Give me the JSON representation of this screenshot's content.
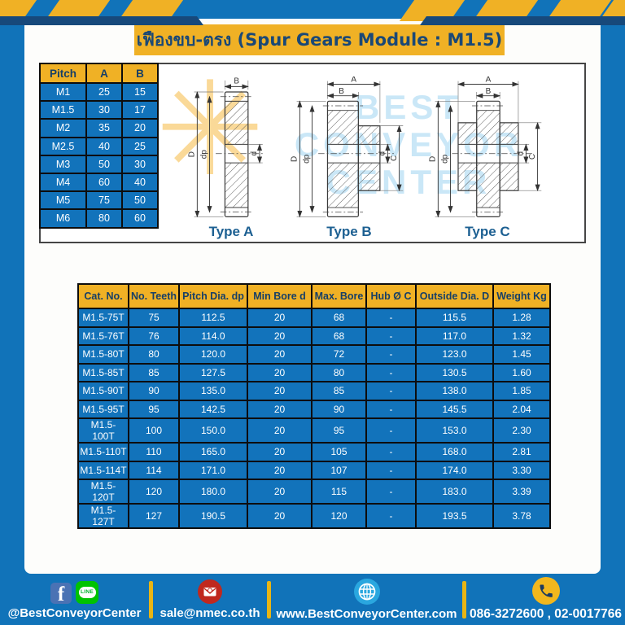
{
  "header": {
    "title": "เฟืองขบ-ตรง (Spur Gears Module : M1.5)"
  },
  "pitch_table": {
    "headers": [
      "Pitch",
      "A",
      "B"
    ],
    "rows": [
      [
        "M1",
        "25",
        "15"
      ],
      [
        "M1.5",
        "30",
        "17"
      ],
      [
        "M2",
        "35",
        "20"
      ],
      [
        "M2.5",
        "40",
        "25"
      ],
      [
        "M3",
        "50",
        "30"
      ],
      [
        "M4",
        "60",
        "40"
      ],
      [
        "M5",
        "75",
        "50"
      ],
      [
        "M6",
        "80",
        "60"
      ]
    ]
  },
  "drawings": {
    "types": [
      {
        "label": "Type A"
      },
      {
        "label": "Type B"
      },
      {
        "label": "Type C"
      }
    ],
    "dims": {
      "A": "A",
      "B": "B",
      "C": "C",
      "D": "D",
      "dp": "dp",
      "d": "d"
    },
    "watermark": {
      "gear": "✳",
      "line1": "BEST",
      "line2": "CONVEYOR",
      "line3": "CENTER"
    }
  },
  "main_table": {
    "headers": [
      "Cat. No.",
      "No. Teeth",
      "Pitch Dia. dp",
      "Min Bore d",
      "Max. Bore",
      "Hub Ø C",
      "Outside Dia. D",
      "Weight Kg"
    ],
    "rows": [
      [
        "M1.5-75T",
        "75",
        "112.5",
        "20",
        "68",
        "-",
        "115.5",
        "1.28"
      ],
      [
        "M1.5-76T",
        "76",
        "114.0",
        "20",
        "68",
        "-",
        "117.0",
        "1.32"
      ],
      [
        "M1.5-80T",
        "80",
        "120.0",
        "20",
        "72",
        "-",
        "123.0",
        "1.45"
      ],
      [
        "M1.5-85T",
        "85",
        "127.5",
        "20",
        "80",
        "-",
        "130.5",
        "1.60"
      ],
      [
        "M1.5-90T",
        "90",
        "135.0",
        "20",
        "85",
        "-",
        "138.0",
        "1.85"
      ],
      [
        "M1.5-95T",
        "95",
        "142.5",
        "20",
        "90",
        "-",
        "145.5",
        "2.04"
      ],
      [
        "M1.5-100T",
        "100",
        "150.0",
        "20",
        "95",
        "-",
        "153.0",
        "2.30"
      ],
      [
        "M1.5-110T",
        "110",
        "165.0",
        "20",
        "105",
        "-",
        "168.0",
        "2.81"
      ],
      [
        "M1.5-114T",
        "114",
        "171.0",
        "20",
        "107",
        "-",
        "174.0",
        "3.30"
      ],
      [
        "M1.5-120T",
        "120",
        "180.0",
        "20",
        "115",
        "-",
        "183.0",
        "3.39"
      ],
      [
        "M1.5-127T",
        "127",
        "190.5",
        "20",
        "120",
        "-",
        "193.5",
        "3.78"
      ]
    ]
  },
  "footer": {
    "facebook_letter": "f",
    "line_badge": "LINE",
    "social_label": "@BestConveyorCenter",
    "email": "sale@nmec.co.th",
    "website": "www.BestConveyorCenter.com",
    "phone": "086-3272600 , 02-0017766"
  },
  "colors": {
    "page_blue": "#1173b9",
    "accent_yellow": "#f0b125",
    "navy_text": "#1a4876",
    "cell_blue": "#1273bb",
    "line_green": "#00c300",
    "facebook_blue": "#4a72b4",
    "email_red": "#c0281e",
    "globe_blue": "#2aa7df",
    "phone_yellow": "#f2b71d"
  }
}
